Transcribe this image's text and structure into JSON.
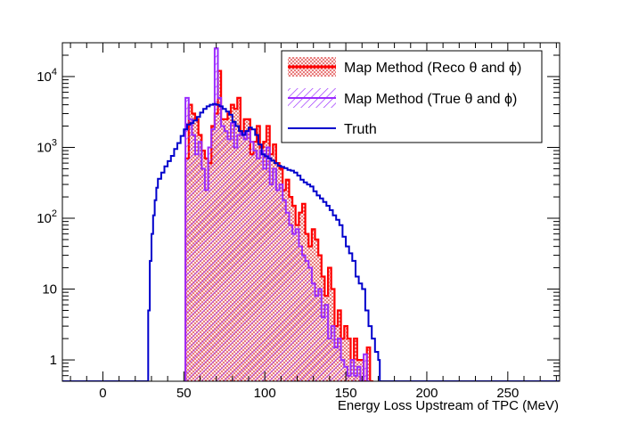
{
  "chart_data": {
    "type": "histogram",
    "title": "",
    "xlabel": "Energy Loss Upstream of TPC (MeV)",
    "ylabel": "",
    "xlim": [
      -25,
      282
    ],
    "ylim": [
      0.5,
      30000
    ],
    "yscale": "log",
    "grid": false,
    "legend_position": "top-right",
    "x_ticks": [
      0,
      50,
      100,
      150,
      200,
      250
    ],
    "y_ticks": [
      {
        "value": 1,
        "label": "1"
      },
      {
        "value": 10,
        "label": "10"
      },
      {
        "value": 100,
        "label": "10^2"
      },
      {
        "value": 1000,
        "label": "10^3"
      },
      {
        "value": 10000,
        "label": "10^4"
      }
    ],
    "series": [
      {
        "name": "Map Method (Reco θ and ϕ)",
        "color": "#ff0000",
        "fill": "hatched",
        "points": [
          [
            50,
            0.5
          ],
          [
            51,
            700
          ],
          [
            53,
            4000
          ],
          [
            55,
            3000
          ],
          [
            57,
            2500
          ],
          [
            59,
            1500
          ],
          [
            61,
            900
          ],
          [
            63,
            700
          ],
          [
            65,
            600
          ],
          [
            67,
            2000
          ],
          [
            69,
            3000
          ],
          [
            71,
            12000
          ],
          [
            73,
            2500
          ],
          [
            75,
            2500
          ],
          [
            77,
            3000
          ],
          [
            79,
            4000
          ],
          [
            81,
            3500
          ],
          [
            83,
            5000
          ],
          [
            85,
            1500
          ],
          [
            87,
            2500
          ],
          [
            89,
            2500
          ],
          [
            91,
            800
          ],
          [
            93,
            1200
          ],
          [
            95,
            2000
          ],
          [
            97,
            1000
          ],
          [
            99,
            1200
          ],
          [
            101,
            2000
          ],
          [
            103,
            800
          ],
          [
            105,
            1100
          ],
          [
            107,
            600
          ],
          [
            109,
            500
          ],
          [
            111,
            250
          ],
          [
            113,
            350
          ],
          [
            115,
            200
          ],
          [
            117,
            150
          ],
          [
            119,
            80
          ],
          [
            121,
            120
          ],
          [
            123,
            160
          ],
          [
            125,
            60
          ],
          [
            127,
            40
          ],
          [
            129,
            70
          ],
          [
            131,
            50
          ],
          [
            133,
            30
          ],
          [
            135,
            15
          ],
          [
            137,
            8
          ],
          [
            139,
            20
          ],
          [
            141,
            10
          ],
          [
            143,
            3
          ],
          [
            145,
            5
          ],
          [
            147,
            2
          ],
          [
            149,
            3
          ],
          [
            151,
            2
          ],
          [
            153,
            1
          ],
          [
            155,
            2
          ],
          [
            157,
            1
          ],
          [
            159,
            1
          ],
          [
            161,
            0.5
          ],
          [
            163,
            1.5
          ],
          [
            165,
            0.5
          ]
        ]
      },
      {
        "name": "Map Method (True θ and ϕ)",
        "color": "#9a2bff",
        "fill": "hatched",
        "points": [
          [
            50,
            0.5
          ],
          [
            51,
            5000
          ],
          [
            53,
            2500
          ],
          [
            55,
            1500
          ],
          [
            57,
            800
          ],
          [
            59,
            1200
          ],
          [
            61,
            500
          ],
          [
            63,
            250
          ],
          [
            65,
            1000
          ],
          [
            67,
            1800
          ],
          [
            69,
            25000
          ],
          [
            71,
            5000
          ],
          [
            73,
            2000
          ],
          [
            75,
            1700
          ],
          [
            77,
            1300
          ],
          [
            79,
            2200
          ],
          [
            81,
            1000
          ],
          [
            83,
            1500
          ],
          [
            85,
            1600
          ],
          [
            87,
            1300
          ],
          [
            89,
            1700
          ],
          [
            91,
            1200
          ],
          [
            93,
            900
          ],
          [
            95,
            700
          ],
          [
            97,
            900
          ],
          [
            99,
            500
          ],
          [
            101,
            1000
          ],
          [
            103,
            300
          ],
          [
            105,
            500
          ],
          [
            107,
            250
          ],
          [
            109,
            300
          ],
          [
            111,
            180
          ],
          [
            113,
            120
          ],
          [
            115,
            80
          ],
          [
            117,
            60
          ],
          [
            119,
            70
          ],
          [
            121,
            40
          ],
          [
            123,
            30
          ],
          [
            125,
            25
          ],
          [
            127,
            20
          ],
          [
            129,
            12
          ],
          [
            131,
            8
          ],
          [
            133,
            10
          ],
          [
            135,
            4
          ],
          [
            137,
            6
          ],
          [
            139,
            2
          ],
          [
            141,
            3
          ],
          [
            143,
            1.5
          ],
          [
            145,
            2
          ],
          [
            147,
            1
          ],
          [
            149,
            0.8
          ],
          [
            151,
            0.6
          ],
          [
            153,
            1
          ],
          [
            155,
            0.6
          ],
          [
            157,
            0.8
          ],
          [
            159,
            0.5
          ],
          [
            161,
            1.2
          ],
          [
            163,
            0.5
          ]
        ]
      },
      {
        "name": "Truth",
        "color": "#0000cc",
        "fill": "none",
        "points": [
          [
            -25,
            0.5
          ],
          [
            27,
            0.5
          ],
          [
            28,
            5
          ],
          [
            29,
            25
          ],
          [
            30,
            60
          ],
          [
            31,
            110
          ],
          [
            32,
            180
          ],
          [
            33,
            270
          ],
          [
            34,
            360
          ],
          [
            36,
            440
          ],
          [
            38,
            540
          ],
          [
            40,
            640
          ],
          [
            42,
            760
          ],
          [
            44,
            950
          ],
          [
            46,
            1150
          ],
          [
            48,
            1450
          ],
          [
            50,
            1800
          ],
          [
            52,
            2100
          ],
          [
            54,
            2200
          ],
          [
            56,
            2400
          ],
          [
            58,
            2700
          ],
          [
            60,
            3100
          ],
          [
            62,
            3500
          ],
          [
            64,
            3800
          ],
          [
            66,
            4000
          ],
          [
            68,
            4100
          ],
          [
            70,
            4000
          ],
          [
            72,
            3800
          ],
          [
            74,
            3500
          ],
          [
            76,
            3200
          ],
          [
            78,
            2900
          ],
          [
            80,
            2300
          ],
          [
            82,
            2000
          ],
          [
            84,
            1700
          ],
          [
            86,
            1500
          ],
          [
            88,
            1700
          ],
          [
            90,
            1900
          ],
          [
            92,
            1800
          ],
          [
            94,
            1500
          ],
          [
            96,
            1100
          ],
          [
            98,
            800
          ],
          [
            100,
            750
          ],
          [
            102,
            700
          ],
          [
            104,
            650
          ],
          [
            106,
            600
          ],
          [
            108,
            550
          ],
          [
            110,
            530
          ],
          [
            112,
            510
          ],
          [
            114,
            480
          ],
          [
            116,
            470
          ],
          [
            118,
            440
          ],
          [
            120,
            400
          ],
          [
            122,
            350
          ],
          [
            124,
            320
          ],
          [
            126,
            300
          ],
          [
            128,
            280
          ],
          [
            130,
            240
          ],
          [
            132,
            210
          ],
          [
            134,
            190
          ],
          [
            136,
            170
          ],
          [
            138,
            150
          ],
          [
            140,
            130
          ],
          [
            142,
            110
          ],
          [
            144,
            95
          ],
          [
            146,
            80
          ],
          [
            148,
            55
          ],
          [
            150,
            40
          ],
          [
            152,
            32
          ],
          [
            154,
            25
          ],
          [
            156,
            15
          ],
          [
            158,
            12
          ],
          [
            160,
            10
          ],
          [
            162,
            5
          ],
          [
            164,
            3
          ],
          [
            166,
            2
          ],
          [
            168,
            1.3
          ],
          [
            170,
            1
          ],
          [
            171,
            0.5
          ],
          [
            282,
            0.5
          ]
        ]
      }
    ]
  },
  "legend": {
    "entries": [
      {
        "prefix": "Map Method (Reco ",
        "sym1": "θ",
        "mid": " and ",
        "sym2": "ϕ",
        "suffix": ")"
      },
      {
        "prefix": "Map Method (True ",
        "sym1": "θ",
        "mid": " and ",
        "sym2": "ϕ",
        "suffix": ")"
      },
      {
        "prefix": "Truth",
        "sym1": "",
        "mid": "",
        "sym2": "",
        "suffix": ""
      }
    ]
  }
}
